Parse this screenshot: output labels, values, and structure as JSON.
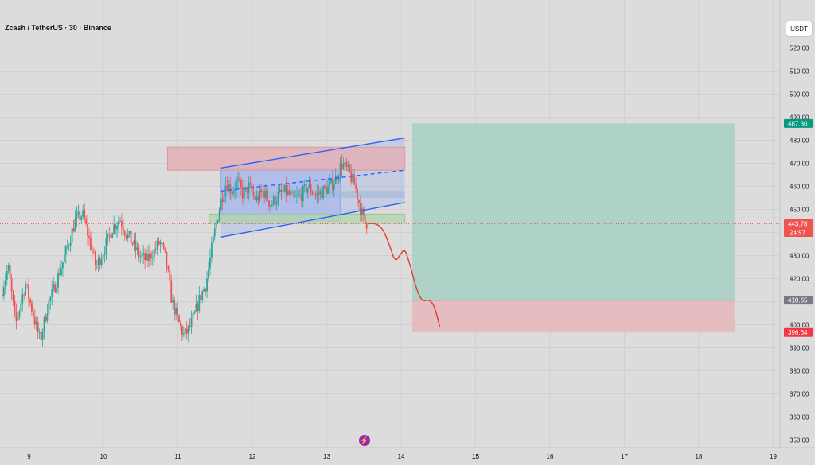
{
  "header": {
    "title": "Zcash / TetherUS · 30 · Binance"
  },
  "toolbar": {
    "unit_label": "USDT"
  },
  "colors": {
    "background": "#dcdcdc",
    "up_candle": "#26a69a",
    "down_candle": "#ef5350",
    "channel": "#2962ff",
    "channel_fill": "#9fb2ee",
    "target_zone": "#a8d0c4",
    "stop_zone": "#e6b8bc",
    "resistance_box": "#e3aeb4",
    "support_box": "#b4d4b0",
    "projection": "#e53935",
    "current_price": "#ef5350",
    "target_tag": "#089981",
    "entry_tag": "#787b86",
    "stop_tag": "#f23645"
  },
  "chart_data": {
    "type": "candlestick",
    "symbol": "Zcash / TetherUS",
    "interval": "30",
    "exchange": "Binance",
    "x_ticks": [
      "9",
      "10",
      "11",
      "12",
      "13",
      "14",
      "15",
      "16",
      "17",
      "18",
      "19"
    ],
    "y_ticks": [
      "350.00",
      "360.00",
      "370.00",
      "380.00",
      "390.00",
      "400.00",
      "410.00",
      "420.00",
      "430.00",
      "440.00",
      "450.00",
      "460.00",
      "470.00",
      "480.00",
      "490.00",
      "500.00",
      "510.00",
      "520.00"
    ],
    "ylim": [
      346,
      528
    ],
    "xlim_days": [
      8.62,
      19.05
    ],
    "price_tags": {
      "target": "487.30",
      "current": "443.78",
      "countdown": "24:57",
      "entry": "410.65",
      "stop": "396.64"
    },
    "price_path": [
      [
        8.62,
        413
      ],
      [
        8.72,
        425
      ],
      [
        8.82,
        400
      ],
      [
        8.95,
        418
      ],
      [
        9.05,
        405
      ],
      [
        9.15,
        393
      ],
      [
        9.25,
        408
      ],
      [
        9.38,
        420
      ],
      [
        9.5,
        432
      ],
      [
        9.62,
        445
      ],
      [
        9.72,
        448
      ],
      [
        9.8,
        438
      ],
      [
        9.9,
        425
      ],
      [
        10.0,
        432
      ],
      [
        10.12,
        442
      ],
      [
        10.22,
        446
      ],
      [
        10.3,
        440
      ],
      [
        10.38,
        436
      ],
      [
        10.48,
        430
      ],
      [
        10.58,
        428
      ],
      [
        10.68,
        432
      ],
      [
        10.76,
        436
      ],
      [
        10.84,
        428
      ],
      [
        10.92,
        410
      ],
      [
        11.0,
        402
      ],
      [
        11.08,
        395
      ],
      [
        11.15,
        398
      ],
      [
        11.22,
        404
      ],
      [
        11.3,
        412
      ],
      [
        11.38,
        418
      ],
      [
        11.45,
        432
      ],
      [
        11.52,
        445
      ],
      [
        11.58,
        454
      ],
      [
        11.65,
        462
      ],
      [
        11.72,
        458
      ],
      [
        11.8,
        462
      ],
      [
        11.88,
        456
      ],
      [
        11.95,
        460
      ],
      [
        12.05,
        454
      ],
      [
        12.15,
        458
      ],
      [
        12.25,
        452
      ],
      [
        12.35,
        456
      ],
      [
        12.45,
        458
      ],
      [
        12.55,
        454
      ],
      [
        12.65,
        456
      ],
      [
        12.75,
        460
      ],
      [
        12.85,
        456
      ],
      [
        12.95,
        458
      ],
      [
        13.05,
        460
      ],
      [
        13.13,
        464
      ],
      [
        13.2,
        470
      ],
      [
        13.3,
        466
      ],
      [
        13.38,
        460
      ],
      [
        13.44,
        452
      ],
      [
        13.5,
        445
      ],
      [
        13.55,
        443.78
      ]
    ],
    "channel": {
      "upper": {
        "start": [
          11.58,
          468
        ],
        "end": [
          14.05,
          481
        ]
      },
      "middle": {
        "start": [
          11.58,
          458
        ],
        "end": [
          14.05,
          467
        ],
        "style": "dashed"
      },
      "lower": {
        "start": [
          11.58,
          438
        ],
        "end": [
          14.05,
          453
        ]
      },
      "fill_upper": {
        "start": [
          11.58,
          468
        ],
        "end": [
          13.18,
          476
        ]
      },
      "fill_lower": {
        "start": [
          11.58,
          438
        ],
        "end": [
          13.18,
          446
        ]
      }
    },
    "zones": {
      "resistance": {
        "x": [
          10.86,
          14.05
        ],
        "y": [
          467,
          477
        ]
      },
      "mid_band": {
        "x": [
          11.58,
          14.05
        ],
        "y": [
          455,
          458
        ]
      },
      "support": {
        "x": [
          11.42,
          14.05
        ],
        "y": [
          444,
          448
        ]
      }
    },
    "position": {
      "x": [
        14.15,
        18.48
      ],
      "target": 487.3,
      "entry": 410.65,
      "stop": 396.64
    },
    "projection_path": [
      [
        13.55,
        443.78
      ],
      [
        13.65,
        444
      ],
      [
        13.75,
        442
      ],
      [
        13.85,
        434
      ],
      [
        13.92,
        427
      ],
      [
        14.0,
        431
      ],
      [
        14.05,
        433
      ],
      [
        14.12,
        426
      ],
      [
        14.2,
        416
      ],
      [
        14.28,
        410
      ],
      [
        14.38,
        411
      ],
      [
        14.45,
        408
      ],
      [
        14.52,
        399
      ]
    ]
  }
}
